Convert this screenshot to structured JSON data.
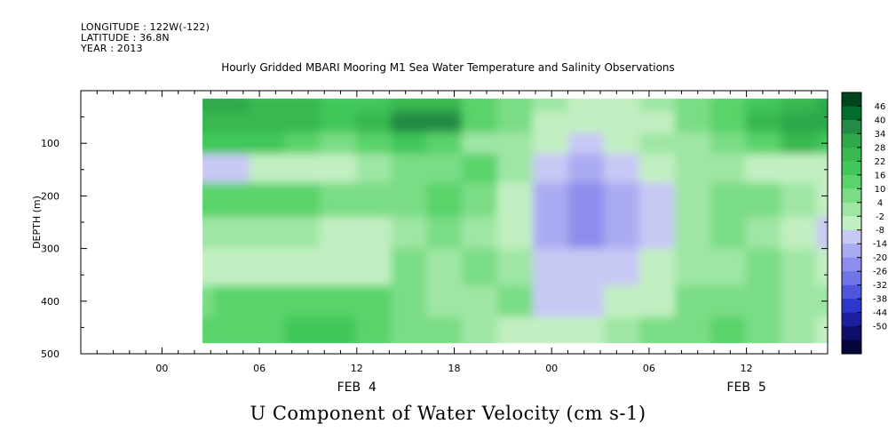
{
  "header": {
    "longitude": "LONGITUDE : 122W(-122)",
    "latitude": "LATITUDE : 36.8N",
    "year": "YEAR : 2013"
  },
  "title": "Hourly Gridded MBARI Mooring M1 Sea Water Temperature and Salinity Observations",
  "bottom_title": "U Component of Water Velocity (cm s-1)",
  "chart_data": {
    "type": "heatmap",
    "title": "Hourly Gridded MBARI Mooring M1 Sea Water Temperature and Salinity Observations",
    "xlabel": "",
    "ylabel": "DEPTH (m)",
    "y_axis": {
      "range": [
        500,
        0
      ],
      "ticks": [
        "100",
        "200",
        "300",
        "400",
        "500"
      ],
      "inverted": true
    },
    "x_axis": {
      "ticks": [
        "00",
        "06",
        "12",
        "18",
        "00",
        "06",
        "12"
      ],
      "date_labels": [
        "FEB  4",
        "FEB  5"
      ],
      "range_hours": [
        -5,
        41
      ]
    },
    "colorbar": {
      "labels": [
        "46",
        "40",
        "34",
        "28",
        "22",
        "16",
        "10",
        "4",
        "-2",
        "-8",
        "-14",
        "-20",
        "-26",
        "-32",
        "-38",
        "-44",
        "-50"
      ],
      "colors": [
        "#00441b",
        "#006d2c",
        "#238b45",
        "#2ea84b",
        "#38b84f",
        "#41c75a",
        "#5ad36a",
        "#7add85",
        "#9fe6a4",
        "#c2efc2",
        "#c8c8f5",
        "#aaaaf2",
        "#8d8ded",
        "#6f74e6",
        "#4d56dc",
        "#2c36c8",
        "#1b1f9e",
        "#0d0f6b",
        "#04053b"
      ]
    },
    "data_extent": {
      "hours": [
        2.5,
        41
      ],
      "depth_m": [
        15,
        480
      ]
    },
    "bands": [
      {
        "depth": [
          15,
          40
        ],
        "values": [
          30,
          30,
          28,
          28,
          22,
          20,
          26,
          26,
          14,
          10,
          4,
          -2,
          -4,
          2,
          10,
          14,
          20,
          26,
          30
        ]
      },
      {
        "depth": [
          40,
          80
        ],
        "values": [
          28,
          26,
          28,
          26,
          22,
          26,
          36,
          40,
          16,
          6,
          -2,
          -4,
          -6,
          -2,
          6,
          12,
          24,
          34,
          34
        ]
      },
      {
        "depth": [
          80,
          120
        ],
        "values": [
          18,
          20,
          18,
          16,
          10,
          16,
          22,
          14,
          4,
          2,
          -4,
          -8,
          -4,
          0,
          4,
          10,
          16,
          24,
          20
        ]
      },
      {
        "depth": [
          120,
          175
        ],
        "values": [
          -8,
          -8,
          -6,
          -4,
          -2,
          2,
          6,
          8,
          14,
          0,
          -10,
          -14,
          -12,
          -6,
          2,
          4,
          -2,
          -4,
          -6
        ]
      },
      {
        "depth": [
          175,
          240
        ],
        "values": [
          14,
          16,
          14,
          12,
          8,
          6,
          10,
          12,
          8,
          -2,
          -14,
          -20,
          -18,
          -10,
          4,
          8,
          10,
          4,
          -4
        ]
      },
      {
        "depth": [
          240,
          300
        ],
        "values": [
          2,
          2,
          4,
          2,
          -2,
          -6,
          4,
          10,
          2,
          -6,
          -18,
          -20,
          -14,
          -8,
          4,
          8,
          2,
          -6,
          -10
        ]
      },
      {
        "depth": [
          300,
          370
        ],
        "values": [
          -4,
          -4,
          -4,
          -6,
          -4,
          -4,
          6,
          4,
          8,
          2,
          -10,
          -12,
          -10,
          -4,
          2,
          2,
          6,
          4,
          -2
        ]
      },
      {
        "depth": [
          370,
          430
        ],
        "values": [
          10,
          12,
          12,
          14,
          16,
          12,
          8,
          4,
          2,
          6,
          -8,
          -10,
          -6,
          -2,
          6,
          10,
          8,
          2,
          4
        ]
      },
      {
        "depth": [
          430,
          480
        ],
        "values": [
          14,
          16,
          16,
          18,
          18,
          14,
          10,
          6,
          4,
          -2,
          -6,
          -6,
          2,
          6,
          10,
          12,
          8,
          2,
          -2
        ]
      }
    ]
  }
}
